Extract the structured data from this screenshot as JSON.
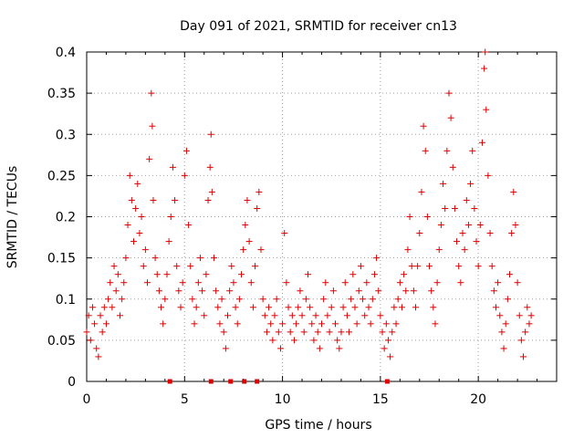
{
  "chart_data": {
    "type": "scatter",
    "title": "Day 091 of 2021, SRMTID for receiver cn13",
    "xlabel": "GPS time / hours",
    "ylabel": "SRMTID / TECUs",
    "xlim": [
      0,
      24
    ],
    "ylim": [
      0,
      0.4
    ],
    "xticks": [
      0,
      5,
      10,
      15,
      20
    ],
    "xtick_labels": [
      "0",
      "5",
      "10",
      "15",
      "20"
    ],
    "yticks": [
      0,
      0.05,
      0.1,
      0.15,
      0.2,
      0.25,
      0.3,
      0.35,
      0.4
    ],
    "ytick_labels": [
      "0",
      "0.05",
      "0.1",
      "0.15",
      "0.2",
      "0.25",
      "0.3",
      "0.35",
      "0.4"
    ],
    "grid": true,
    "marker": "+",
    "color": "#e00000",
    "series": [
      {
        "name": "SRMTID",
        "points": [
          [
            0.0,
            0.06
          ],
          [
            0.1,
            0.08
          ],
          [
            0.2,
            0.05
          ],
          [
            0.3,
            0.09
          ],
          [
            0.4,
            0.07
          ],
          [
            0.5,
            0.04
          ],
          [
            0.6,
            0.03
          ],
          [
            0.7,
            0.08
          ],
          [
            0.8,
            0.06
          ],
          [
            0.9,
            0.09
          ],
          [
            1.0,
            0.07
          ],
          [
            1.1,
            0.1
          ],
          [
            1.2,
            0.12
          ],
          [
            1.3,
            0.09
          ],
          [
            1.4,
            0.14
          ],
          [
            1.5,
            0.11
          ],
          [
            1.6,
            0.13
          ],
          [
            1.7,
            0.08
          ],
          [
            1.8,
            0.1
          ],
          [
            1.9,
            0.12
          ],
          [
            2.0,
            0.15
          ],
          [
            2.1,
            0.19
          ],
          [
            2.2,
            0.25
          ],
          [
            2.3,
            0.22
          ],
          [
            2.4,
            0.17
          ],
          [
            2.5,
            0.21
          ],
          [
            2.6,
            0.24
          ],
          [
            2.7,
            0.18
          ],
          [
            2.8,
            0.2
          ],
          [
            2.9,
            0.14
          ],
          [
            3.0,
            0.16
          ],
          [
            3.1,
            0.12
          ],
          [
            3.2,
            0.27
          ],
          [
            3.3,
            0.35
          ],
          [
            3.35,
            0.31
          ],
          [
            3.4,
            0.22
          ],
          [
            3.5,
            0.15
          ],
          [
            3.6,
            0.13
          ],
          [
            3.7,
            0.11
          ],
          [
            3.8,
            0.09
          ],
          [
            3.9,
            0.07
          ],
          [
            4.0,
            0.1
          ],
          [
            4.1,
            0.13
          ],
          [
            4.2,
            0.17
          ],
          [
            4.3,
            0.2
          ],
          [
            4.4,
            0.26
          ],
          [
            4.5,
            0.22
          ],
          [
            4.6,
            0.14
          ],
          [
            4.7,
            0.11
          ],
          [
            4.8,
            0.09
          ],
          [
            4.9,
            0.12
          ],
          [
            5.0,
            0.25
          ],
          [
            5.1,
            0.28
          ],
          [
            5.2,
            0.19
          ],
          [
            5.3,
            0.14
          ],
          [
            5.4,
            0.1
          ],
          [
            5.5,
            0.07
          ],
          [
            5.6,
            0.09
          ],
          [
            5.7,
            0.12
          ],
          [
            5.8,
            0.15
          ],
          [
            5.9,
            0.11
          ],
          [
            6.0,
            0.08
          ],
          [
            6.1,
            0.13
          ],
          [
            6.2,
            0.22
          ],
          [
            6.3,
            0.26
          ],
          [
            6.35,
            0.3
          ],
          [
            6.4,
            0.23
          ],
          [
            6.5,
            0.15
          ],
          [
            6.6,
            0.11
          ],
          [
            6.7,
            0.09
          ],
          [
            6.8,
            0.07
          ],
          [
            6.9,
            0.1
          ],
          [
            7.0,
            0.06
          ],
          [
            7.1,
            0.04
          ],
          [
            7.2,
            0.08
          ],
          [
            7.3,
            0.11
          ],
          [
            7.4,
            0.14
          ],
          [
            7.5,
            0.12
          ],
          [
            7.6,
            0.09
          ],
          [
            7.7,
            0.07
          ],
          [
            7.8,
            0.1
          ],
          [
            7.9,
            0.13
          ],
          [
            8.0,
            0.16
          ],
          [
            8.1,
            0.19
          ],
          [
            8.2,
            0.22
          ],
          [
            8.3,
            0.17
          ],
          [
            8.4,
            0.12
          ],
          [
            8.5,
            0.09
          ],
          [
            8.6,
            0.14
          ],
          [
            8.7,
            0.21
          ],
          [
            8.8,
            0.23
          ],
          [
            8.9,
            0.16
          ],
          [
            9.0,
            0.1
          ],
          [
            9.1,
            0.08
          ],
          [
            9.2,
            0.06
          ],
          [
            9.3,
            0.09
          ],
          [
            9.4,
            0.07
          ],
          [
            9.5,
            0.05
          ],
          [
            9.6,
            0.08
          ],
          [
            9.7,
            0.1
          ],
          [
            9.8,
            0.06
          ],
          [
            9.9,
            0.04
          ],
          [
            10.0,
            0.07
          ],
          [
            10.1,
            0.18
          ],
          [
            10.2,
            0.12
          ],
          [
            10.3,
            0.09
          ],
          [
            10.4,
            0.06
          ],
          [
            10.5,
            0.08
          ],
          [
            10.6,
            0.05
          ],
          [
            10.7,
            0.07
          ],
          [
            10.8,
            0.09
          ],
          [
            10.9,
            0.11
          ],
          [
            11.0,
            0.08
          ],
          [
            11.1,
            0.06
          ],
          [
            11.2,
            0.1
          ],
          [
            11.3,
            0.13
          ],
          [
            11.4,
            0.09
          ],
          [
            11.5,
            0.07
          ],
          [
            11.6,
            0.05
          ],
          [
            11.7,
            0.08
          ],
          [
            11.8,
            0.06
          ],
          [
            11.9,
            0.04
          ],
          [
            12.0,
            0.07
          ],
          [
            12.1,
            0.1
          ],
          [
            12.2,
            0.12
          ],
          [
            12.3,
            0.08
          ],
          [
            12.4,
            0.06
          ],
          [
            12.5,
            0.09
          ],
          [
            12.6,
            0.11
          ],
          [
            12.7,
            0.07
          ],
          [
            12.8,
            0.05
          ],
          [
            12.9,
            0.04
          ],
          [
            13.0,
            0.06
          ],
          [
            13.1,
            0.09
          ],
          [
            13.2,
            0.12
          ],
          [
            13.3,
            0.08
          ],
          [
            13.4,
            0.06
          ],
          [
            13.5,
            0.1
          ],
          [
            13.6,
            0.13
          ],
          [
            13.7,
            0.09
          ],
          [
            13.8,
            0.07
          ],
          [
            13.9,
            0.11
          ],
          [
            14.0,
            0.14
          ],
          [
            14.1,
            0.1
          ],
          [
            14.2,
            0.08
          ],
          [
            14.3,
            0.12
          ],
          [
            14.4,
            0.09
          ],
          [
            14.5,
            0.07
          ],
          [
            14.6,
            0.1
          ],
          [
            14.7,
            0.13
          ],
          [
            14.8,
            0.15
          ],
          [
            14.9,
            0.11
          ],
          [
            15.0,
            0.08
          ],
          [
            15.1,
            0.06
          ],
          [
            15.2,
            0.04
          ],
          [
            15.3,
            0.07
          ],
          [
            15.4,
            0.05
          ],
          [
            15.5,
            0.03
          ],
          [
            15.6,
            0.06
          ],
          [
            15.7,
            0.09
          ],
          [
            15.8,
            0.07
          ],
          [
            15.9,
            0.1
          ],
          [
            16.0,
            0.12
          ],
          [
            16.1,
            0.09
          ],
          [
            16.2,
            0.13
          ],
          [
            16.3,
            0.11
          ],
          [
            16.4,
            0.16
          ],
          [
            16.5,
            0.2
          ],
          [
            16.6,
            0.14
          ],
          [
            16.7,
            0.11
          ],
          [
            16.8,
            0.09
          ],
          [
            16.9,
            0.14
          ],
          [
            17.0,
            0.18
          ],
          [
            17.1,
            0.23
          ],
          [
            17.2,
            0.31
          ],
          [
            17.3,
            0.28
          ],
          [
            17.4,
            0.2
          ],
          [
            17.5,
            0.14
          ],
          [
            17.6,
            0.11
          ],
          [
            17.7,
            0.09
          ],
          [
            17.8,
            0.07
          ],
          [
            17.9,
            0.12
          ],
          [
            18.0,
            0.16
          ],
          [
            18.1,
            0.19
          ],
          [
            18.2,
            0.24
          ],
          [
            18.3,
            0.21
          ],
          [
            18.4,
            0.28
          ],
          [
            18.5,
            0.35
          ],
          [
            18.6,
            0.32
          ],
          [
            18.7,
            0.26
          ],
          [
            18.8,
            0.21
          ],
          [
            18.9,
            0.17
          ],
          [
            19.0,
            0.14
          ],
          [
            19.1,
            0.12
          ],
          [
            19.2,
            0.18
          ],
          [
            19.3,
            0.16
          ],
          [
            19.4,
            0.22
          ],
          [
            19.5,
            0.19
          ],
          [
            19.6,
            0.24
          ],
          [
            19.7,
            0.28
          ],
          [
            19.8,
            0.21
          ],
          [
            19.9,
            0.17
          ],
          [
            20.0,
            0.14
          ],
          [
            20.1,
            0.19
          ],
          [
            20.2,
            0.29
          ],
          [
            20.3,
            0.38
          ],
          [
            20.35,
            0.4
          ],
          [
            20.4,
            0.33
          ],
          [
            20.5,
            0.25
          ],
          [
            20.6,
            0.18
          ],
          [
            20.7,
            0.14
          ],
          [
            20.8,
            0.11
          ],
          [
            20.9,
            0.09
          ],
          [
            21.0,
            0.12
          ],
          [
            21.1,
            0.08
          ],
          [
            21.2,
            0.06
          ],
          [
            21.3,
            0.04
          ],
          [
            21.4,
            0.07
          ],
          [
            21.5,
            0.1
          ],
          [
            21.6,
            0.13
          ],
          [
            21.7,
            0.18
          ],
          [
            21.8,
            0.23
          ],
          [
            21.9,
            0.19
          ],
          [
            22.0,
            0.12
          ],
          [
            22.1,
            0.08
          ],
          [
            22.2,
            0.05
          ],
          [
            22.3,
            0.03
          ],
          [
            22.4,
            0.06
          ],
          [
            22.5,
            0.09
          ],
          [
            22.6,
            0.07
          ],
          [
            22.7,
            0.08
          ]
        ]
      }
    ],
    "gap_markers_x": [
      4.25,
      6.35,
      7.35,
      8.05,
      8.7,
      15.35
    ]
  }
}
